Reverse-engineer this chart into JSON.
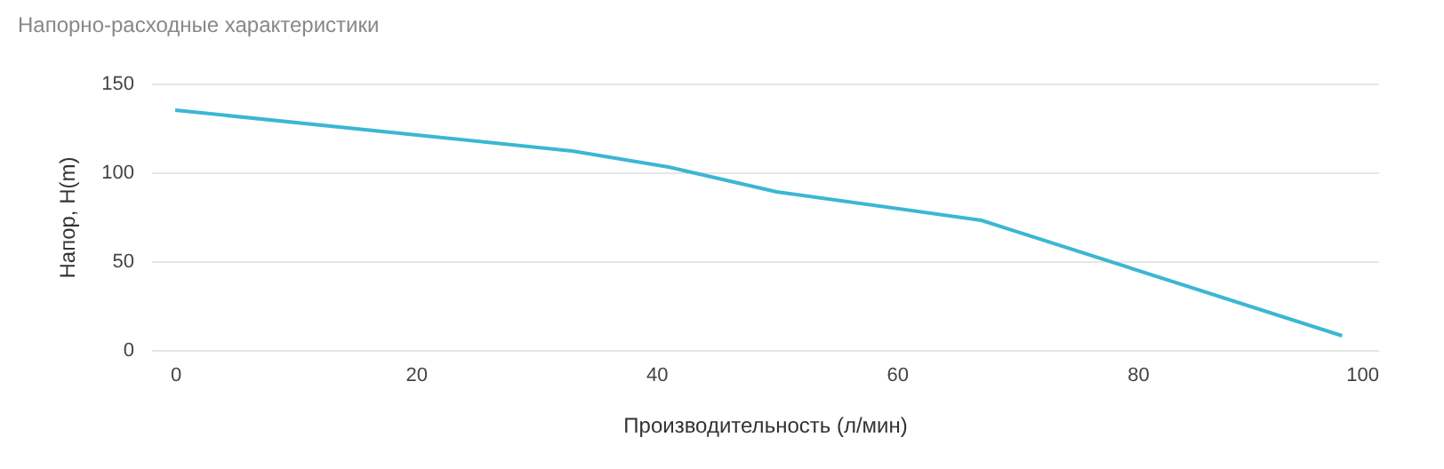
{
  "chart_data": {
    "type": "line",
    "title": "Напорно-расходные характеристики",
    "xlabel": "Производительность (л/мин)",
    "ylabel": "Напор, H(m)",
    "x": [
      0,
      33,
      41,
      50,
      67,
      97
    ],
    "series": [
      {
        "color": "#3bb7d3",
        "values": [
          135,
          112,
          103,
          89,
          73,
          8
        ]
      }
    ],
    "xlim": [
      -2,
      100
    ],
    "xticks": [
      0,
      20,
      40,
      60,
      80,
      100
    ],
    "ylim": [
      0,
      150
    ],
    "yticks": [
      0,
      50,
      100,
      150
    ],
    "grid": "y",
    "marker": "none",
    "line_style": "solid"
  }
}
